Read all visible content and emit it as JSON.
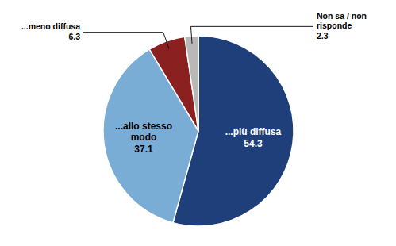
{
  "chart_data": {
    "type": "pie",
    "categories": [
      "...più diffusa",
      "...allo stesso modo",
      "...meno diffusa",
      "Non sa / non risponde"
    ],
    "values": [
      54.3,
      37.1,
      6.3,
      2.3
    ],
    "colors": [
      "#1e3f7a",
      "#7aadd6",
      "#8b2020",
      "#b8b8b8"
    ],
    "data_labels": true
  }
}
